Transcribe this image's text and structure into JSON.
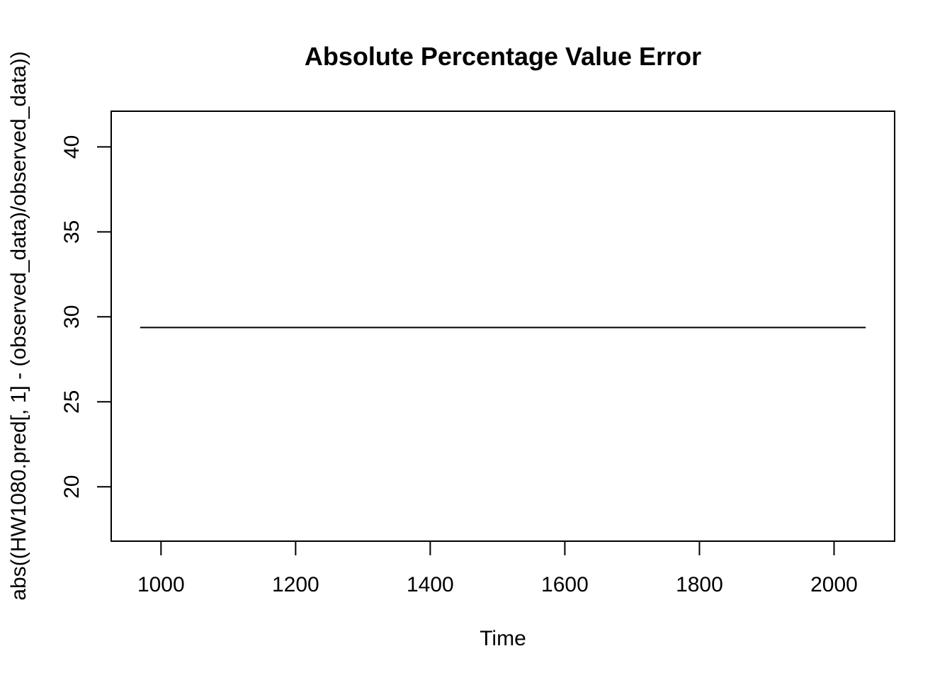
{
  "chart_data": {
    "type": "line",
    "title": "Absolute Percentage Value Error",
    "xlabel": "Time",
    "ylabel": "abs((HW1080.pred[, 1] - (observed_data)/observed_data))",
    "xlim": [
      926,
      2090
    ],
    "ylim": [
      16.8,
      42.1
    ],
    "x_ticks": [
      1000,
      1200,
      1400,
      1600,
      1800,
      2000
    ],
    "y_ticks": [
      20,
      25,
      30,
      35,
      40
    ],
    "grid": false,
    "legend": "none",
    "line_color": "#000000",
    "series": [
      {
        "x": [
          969,
          2047
        ],
        "y": [
          29.37,
          29.37
        ]
      }
    ]
  }
}
